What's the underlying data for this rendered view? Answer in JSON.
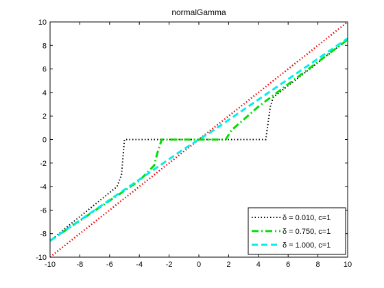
{
  "chart_data": {
    "type": "line",
    "title": "normalGamma",
    "xlabel": "",
    "ylabel": "",
    "xlim": [
      -10,
      10
    ],
    "ylim": [
      -10,
      10
    ],
    "xticks": [
      -10,
      -8,
      -6,
      -4,
      -2,
      0,
      2,
      4,
      6,
      8,
      10
    ],
    "yticks": [
      -10,
      -8,
      -6,
      -4,
      -2,
      0,
      2,
      4,
      6,
      8,
      10
    ],
    "grid": false,
    "legend_position": "bottom-right",
    "series": [
      {
        "name": "δ = 0.010, c=1",
        "color": "#000000",
        "style": "dotted",
        "x": [
          -10,
          -5.5,
          -5.2,
          -5.0,
          4.5,
          4.8,
          5.0,
          10
        ],
        "y": [
          -8.6,
          -4.0,
          -3.0,
          0.0,
          0.0,
          2.8,
          3.6,
          8.5
        ]
      },
      {
        "name": "δ = 0.750, c=1",
        "color": "#00dd00",
        "style": "dash-dot",
        "x": [
          -10,
          -4,
          -3,
          -2.8,
          -2.5,
          1.8,
          2.2,
          4.0,
          10
        ],
        "y": [
          -8.6,
          -3.5,
          -2.2,
          -1.2,
          0.0,
          0.0,
          0.8,
          2.8,
          8.5
        ]
      },
      {
        "name": "δ = 1.000, c=1",
        "color": "#00eeee",
        "style": "dashed",
        "x": [
          -10,
          -1.0,
          0.0,
          1.0,
          10
        ],
        "y": [
          -8.6,
          -0.8,
          0.0,
          0.8,
          8.6
        ]
      },
      {
        "color": "#ee0000",
        "style": "dotted",
        "x": [
          -10,
          10
        ],
        "y": [
          -10,
          10
        ]
      }
    ]
  }
}
